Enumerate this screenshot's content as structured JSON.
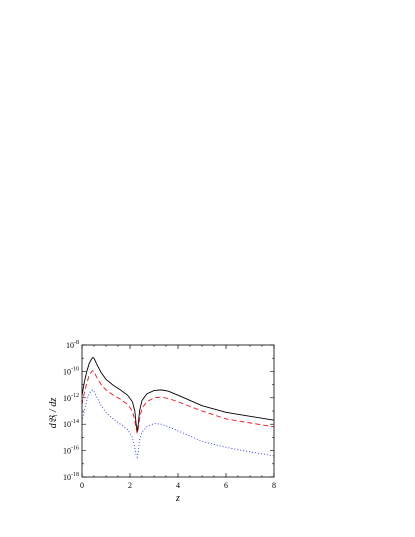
{
  "chart_data": {
    "type": "line",
    "xlabel": "z",
    "ylabel": "d𝔅ᵢ / dz",
    "xlim": [
      0,
      8
    ],
    "ylim_log10": [
      -18,
      -8
    ],
    "y_scale": "log",
    "grid": false,
    "x_ticks": [
      {
        "value": 0,
        "label": "0"
      },
      {
        "value": 2,
        "label": "2"
      },
      {
        "value": 4,
        "label": "4"
      },
      {
        "value": 6,
        "label": "6"
      },
      {
        "value": 8,
        "label": "8"
      }
    ],
    "y_ticks": [
      {
        "value": -8,
        "base": "10",
        "exp": "-8"
      },
      {
        "value": -10,
        "base": "10",
        "exp": "-10"
      },
      {
        "value": -12,
        "base": "10",
        "exp": "-12"
      },
      {
        "value": -14,
        "base": "10",
        "exp": "-14"
      },
      {
        "value": -16,
        "base": "10",
        "exp": "-16"
      },
      {
        "value": -18,
        "base": "10",
        "exp": "-18"
      }
    ],
    "series": [
      {
        "style": "solid",
        "color": "#000000",
        "points": [
          [
            0,
            -11.8
          ],
          [
            0.1,
            -10.8
          ],
          [
            0.2,
            -10.0
          ],
          [
            0.3,
            -9.4
          ],
          [
            0.4,
            -9.05
          ],
          [
            0.45,
            -8.95
          ],
          [
            0.5,
            -9.0
          ],
          [
            0.6,
            -9.4
          ],
          [
            0.8,
            -10.1
          ],
          [
            1.0,
            -10.6
          ],
          [
            1.3,
            -11.05
          ],
          [
            1.6,
            -11.4
          ],
          [
            1.9,
            -11.8
          ],
          [
            2.1,
            -12.3
          ],
          [
            2.2,
            -13.0
          ],
          [
            2.25,
            -13.9
          ],
          [
            2.3,
            -14.6
          ],
          [
            2.35,
            -13.9
          ],
          [
            2.4,
            -13.0
          ],
          [
            2.5,
            -12.2
          ],
          [
            2.7,
            -11.7
          ],
          [
            3.0,
            -11.45
          ],
          [
            3.3,
            -11.4
          ],
          [
            3.6,
            -11.5
          ],
          [
            4.0,
            -11.8
          ],
          [
            5.0,
            -12.6
          ],
          [
            6.0,
            -13.1
          ],
          [
            7.0,
            -13.4
          ],
          [
            8.0,
            -13.7
          ]
        ]
      },
      {
        "style": "dashed",
        "color": "#e8141c",
        "points": [
          [
            0,
            -12.5
          ],
          [
            0.1,
            -11.6
          ],
          [
            0.2,
            -10.9
          ],
          [
            0.3,
            -10.3
          ],
          [
            0.4,
            -10.0
          ],
          [
            0.45,
            -9.95
          ],
          [
            0.5,
            -10.0
          ],
          [
            0.6,
            -10.4
          ],
          [
            0.8,
            -11.0
          ],
          [
            1.0,
            -11.4
          ],
          [
            1.3,
            -11.8
          ],
          [
            1.6,
            -12.1
          ],
          [
            1.9,
            -12.5
          ],
          [
            2.1,
            -13.0
          ],
          [
            2.2,
            -13.7
          ],
          [
            2.25,
            -14.3
          ],
          [
            2.3,
            -14.7
          ],
          [
            2.35,
            -14.3
          ],
          [
            2.4,
            -13.6
          ],
          [
            2.5,
            -12.8
          ],
          [
            2.7,
            -12.3
          ],
          [
            3.0,
            -12.0
          ],
          [
            3.3,
            -11.95
          ],
          [
            3.6,
            -12.05
          ],
          [
            4.0,
            -12.3
          ],
          [
            5.0,
            -13.0
          ],
          [
            6.0,
            -13.6
          ],
          [
            7.0,
            -13.9
          ],
          [
            8.0,
            -14.2
          ]
        ]
      },
      {
        "style": "dotted",
        "color": "#2a3ae0",
        "points": [
          [
            0,
            -13.8
          ],
          [
            0.1,
            -12.9
          ],
          [
            0.2,
            -12.2
          ],
          [
            0.3,
            -11.7
          ],
          [
            0.4,
            -11.45
          ],
          [
            0.45,
            -11.4
          ],
          [
            0.5,
            -11.5
          ],
          [
            0.6,
            -11.9
          ],
          [
            0.8,
            -12.6
          ],
          [
            1.0,
            -13.1
          ],
          [
            1.3,
            -13.6
          ],
          [
            1.6,
            -14.0
          ],
          [
            1.9,
            -14.4
          ],
          [
            2.1,
            -15.0
          ],
          [
            2.2,
            -15.8
          ],
          [
            2.25,
            -16.3
          ],
          [
            2.3,
            -16.5
          ],
          [
            2.35,
            -16.0
          ],
          [
            2.4,
            -15.2
          ],
          [
            2.5,
            -14.6
          ],
          [
            2.7,
            -14.2
          ],
          [
            3.0,
            -13.95
          ],
          [
            3.3,
            -14.0
          ],
          [
            3.6,
            -14.2
          ],
          [
            4.0,
            -14.5
          ],
          [
            5.0,
            -15.3
          ],
          [
            6.0,
            -15.75
          ],
          [
            7.0,
            -16.1
          ],
          [
            8.0,
            -16.4
          ]
        ]
      }
    ]
  }
}
